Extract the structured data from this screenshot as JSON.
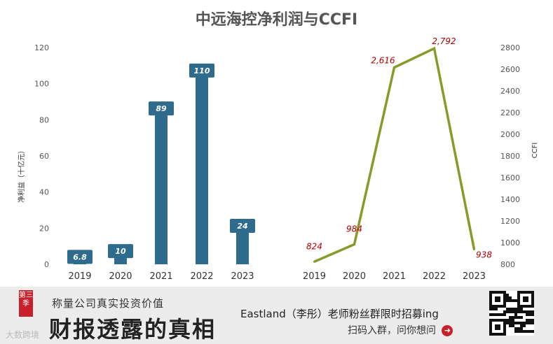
{
  "title": "中远海控净利润与CCFI",
  "chart_data": [
    {
      "type": "bar",
      "categories": [
        "2019",
        "2020",
        "2021",
        "2022",
        "2023"
      ],
      "values": [
        6.8,
        10,
        89,
        110,
        24
      ],
      "data_labels": [
        "6.8",
        "10",
        "89",
        "110",
        "24"
      ],
      "ylabel": "净利益（十亿元）",
      "ylim": [
        0,
        120
      ],
      "yticks": [
        "0",
        "20",
        "40",
        "60",
        "80",
        "100",
        "120"
      ],
      "color": "#2e6b8c"
    },
    {
      "type": "line",
      "categories": [
        "2019",
        "2020",
        "2021",
        "2022",
        "2023"
      ],
      "values": [
        824,
        984,
        2616,
        2792,
        938
      ],
      "data_labels": [
        "824",
        "984",
        "2,616",
        "2,792",
        "938"
      ],
      "ylabel": "CCFI",
      "ylim": [
        800,
        2800
      ],
      "yticks": [
        "800",
        "1000",
        "1200",
        "1400",
        "1600",
        "1800",
        "2000",
        "2200",
        "2400",
        "2600",
        "2800"
      ],
      "color": "#8a9a2a"
    }
  ],
  "banner": {
    "season_tag": "第三季",
    "subtitle": "称量公司真实投资价值",
    "main_title": "财报透露的真相",
    "brand": "大数跨境",
    "promo": "Eastland（李彤）老师粉丝群限时招募ing",
    "action": "扫码入群，问你想问"
  }
}
